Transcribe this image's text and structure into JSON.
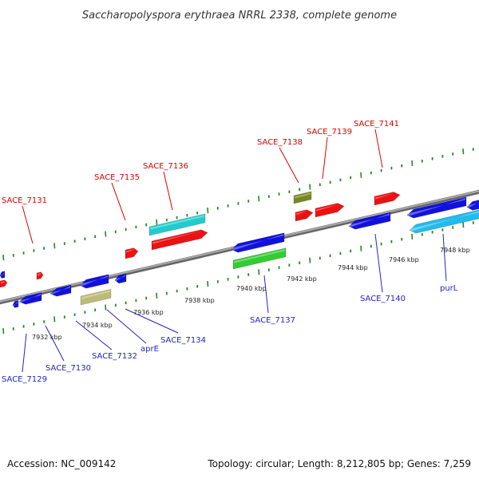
{
  "title": "Saccharopolyspora erythraea NRRL 2338, complete genome",
  "footer": {
    "accession": "Accession: NC_009142",
    "summary": "Topology: circular; Length: 8,212,805 bp; Genes: 7,259"
  },
  "colors": {
    "red": "#ee1111",
    "blue": "#1111dd",
    "cyan": "#22cccc",
    "green": "#33cc33",
    "olive": "#778822",
    "khaki": "#bbbb77",
    "lightblue": "#22bbee",
    "backbone": "#888888",
    "ticks": "#228822",
    "label_red": "#dd0000",
    "label_blue": "#2222cc"
  },
  "scale_labels": [
    {
      "text": "7932 kbp"
    },
    {
      "text": "7934 kbp"
    },
    {
      "text": "7936 kbp"
    },
    {
      "text": "7938 kbp"
    },
    {
      "text": "7940 kbp"
    },
    {
      "text": "7942 kbp"
    },
    {
      "text": "7944 kbp"
    },
    {
      "text": "7946 kbp"
    },
    {
      "text": "7948 kbp"
    }
  ],
  "gene_labels": [
    {
      "text": "SACE_7131",
      "strand": "forward"
    },
    {
      "text": "SACE_7135",
      "strand": "forward"
    },
    {
      "text": "SACE_7136",
      "strand": "forward"
    },
    {
      "text": "SACE_7138",
      "strand": "forward"
    },
    {
      "text": "SACE_7139",
      "strand": "forward"
    },
    {
      "text": "SACE_7141",
      "strand": "forward"
    },
    {
      "text": "SACE_7137",
      "strand": "reverse"
    },
    {
      "text": "SACE_7140",
      "strand": "reverse"
    },
    {
      "text": "purL",
      "strand": "reverse"
    },
    {
      "text": "SACE_7134",
      "strand": "reverse"
    },
    {
      "text": "aprE",
      "strand": "reverse"
    },
    {
      "text": "SACE_7132",
      "strand": "reverse"
    },
    {
      "text": "SACE_7130",
      "strand": "reverse"
    },
    {
      "text": "SACE_7129",
      "strand": "reverse"
    }
  ]
}
